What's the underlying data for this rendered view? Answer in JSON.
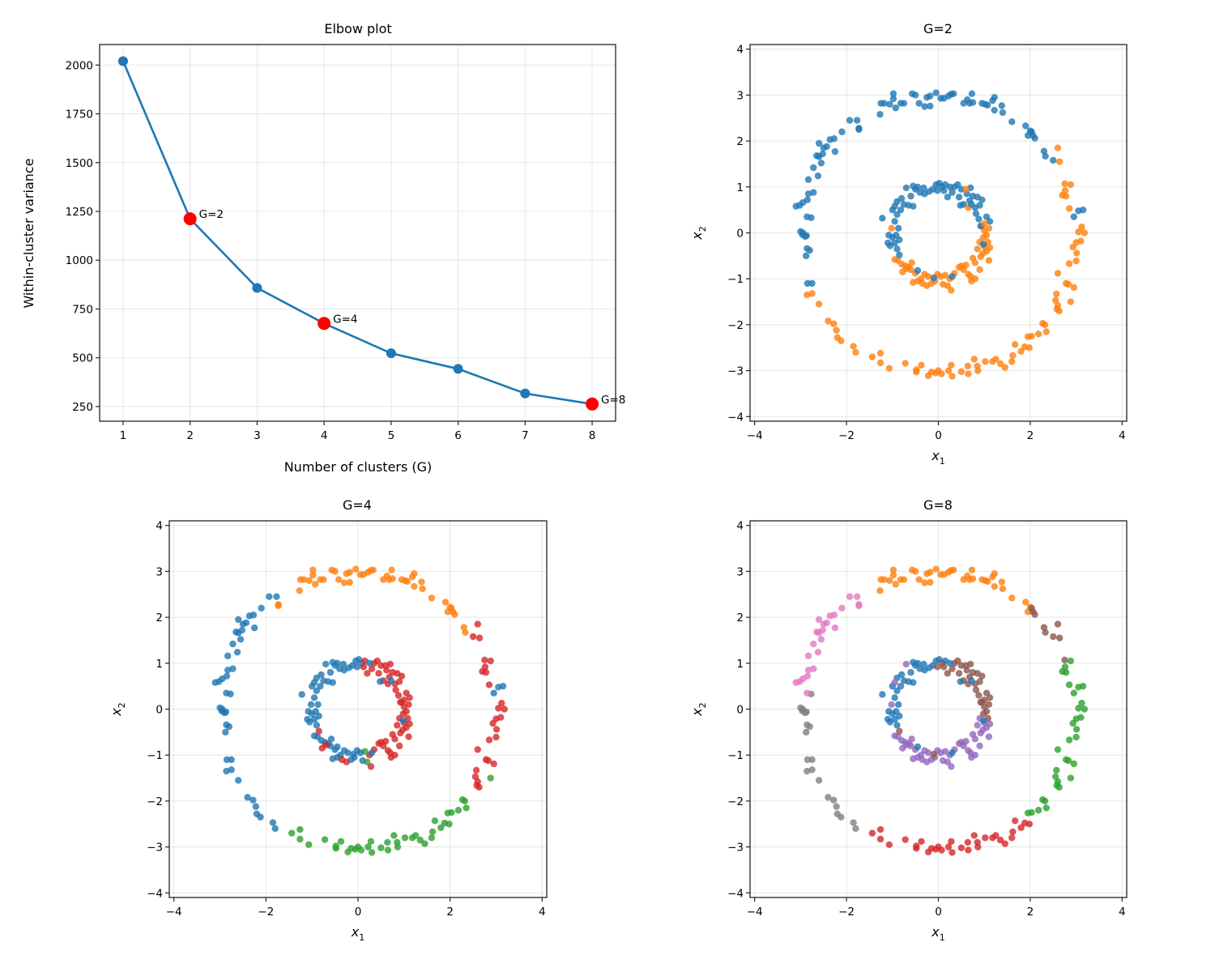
{
  "chart_data": [
    {
      "id": "elbow",
      "type": "line",
      "title": "Elbow plot",
      "xlabel": "Number of clusters (G)",
      "ylabel": "Within-cluster variance",
      "x": [
        1,
        2,
        3,
        4,
        5,
        6,
        7,
        8
      ],
      "values": [
        2020,
        1212,
        858,
        676,
        523,
        443,
        317,
        263
      ],
      "xlim": [
        0.65,
        8.35
      ],
      "ylim": [
        175,
        2105
      ],
      "xticks": [
        "1",
        "2",
        "3",
        "4",
        "5",
        "6",
        "7",
        "8"
      ],
      "yticks": [
        250,
        500,
        750,
        1000,
        1250,
        1500,
        1750,
        2000
      ],
      "grid": true,
      "line_color": "#1f77b4",
      "highlight_color": "#ff0000",
      "highlights": [
        {
          "x": 2,
          "label": "G=2"
        },
        {
          "x": 4,
          "label": "G=4"
        },
        {
          "x": 8,
          "label": "G=8"
        }
      ]
    },
    {
      "id": "g2",
      "type": "scatter",
      "title": "G=2",
      "xlabel": "x",
      "xlabel_sub": "1",
      "ylabel": "x",
      "ylabel_sub": "2",
      "xlim": [
        -4.1,
        4.1
      ],
      "ylim": [
        -4.1,
        4.1
      ],
      "ticks": [
        "−4",
        "−2",
        "0",
        "2",
        "4"
      ],
      "tick_values": [
        -4,
        -2,
        0,
        2,
        4
      ],
      "grid": true,
      "G": 2
    },
    {
      "id": "g4",
      "type": "scatter",
      "title": "G=4",
      "xlabel": "x",
      "xlabel_sub": "1",
      "ylabel": "x",
      "ylabel_sub": "2",
      "xlim": [
        -4.1,
        4.1
      ],
      "ylim": [
        -4.1,
        4.1
      ],
      "ticks": [
        "−4",
        "−2",
        "0",
        "2",
        "4"
      ],
      "tick_values": [
        -4,
        -2,
        0,
        2,
        4
      ],
      "grid": true,
      "G": 4
    },
    {
      "id": "g8",
      "type": "scatter",
      "title": "G=8",
      "xlabel": "x",
      "xlabel_sub": "1",
      "ylabel": "x",
      "ylabel_sub": "2",
      "xlim": [
        -4.1,
        4.1
      ],
      "ylim": [
        -4.1,
        4.1
      ],
      "ticks": [
        "−4",
        "−2",
        "0",
        "2",
        "4"
      ],
      "tick_values": [
        -4,
        -2,
        0,
        2,
        4
      ],
      "grid": true,
      "G": 8
    }
  ],
  "scatter_yticks": [
    "4",
    "3",
    "2",
    "1",
    "0",
    "−1",
    "−2",
    "−3",
    "−4"
  ],
  "scatter_ytick_values": [
    4,
    3,
    2,
    1,
    0,
    -1,
    -2,
    -3,
    -4
  ],
  "palette": {
    "blue": "#1f77b4",
    "orange": "#ff7f0e",
    "green": "#2ca02c",
    "red": "#d62728",
    "purple": "#9467bd",
    "brown": "#8c564b",
    "pink": "#e377c2",
    "gray": "#7f7f7f"
  },
  "points": {
    "outer": [
      [
        3.05,
        0.02
      ],
      [
        3.12,
        0.13
      ],
      [
        3.18,
        0.0
      ],
      [
        3.1,
        -0.18
      ],
      [
        3.0,
        -0.21
      ],
      [
        2.93,
        -0.31
      ],
      [
        3.01,
        -0.44
      ],
      [
        2.85,
        -0.67
      ],
      [
        3.0,
        -0.61
      ],
      [
        2.6,
        -0.88
      ],
      [
        2.78,
        -1.1
      ],
      [
        2.83,
        -1.12
      ],
      [
        2.95,
        -1.19
      ],
      [
        2.57,
        -1.33
      ],
      [
        2.55,
        -1.47
      ],
      [
        2.6,
        -1.58
      ],
      [
        2.63,
        -1.7
      ],
      [
        2.58,
        -1.66
      ],
      [
        2.88,
        -1.5
      ],
      [
        2.32,
        -2.0
      ],
      [
        2.27,
        -1.97
      ],
      [
        2.35,
        -2.15
      ],
      [
        2.18,
        -2.2
      ],
      [
        2.03,
        -2.25
      ],
      [
        1.95,
        -2.26
      ],
      [
        1.88,
        -2.48
      ],
      [
        1.98,
        -2.5
      ],
      [
        1.8,
        -2.58
      ],
      [
        1.67,
        -2.43
      ],
      [
        1.62,
        -2.67
      ],
      [
        1.6,
        -2.8
      ],
      [
        1.45,
        -2.93
      ],
      [
        1.35,
        -2.85
      ],
      [
        1.25,
        -2.75
      ],
      [
        1.18,
        -2.8
      ],
      [
        1.02,
        -2.8
      ],
      [
        0.78,
        -2.75
      ],
      [
        0.85,
        -2.9
      ],
      [
        0.86,
        -3.0
      ],
      [
        0.64,
        -2.9
      ],
      [
        0.65,
        -3.07
      ],
      [
        0.5,
        -3.02
      ],
      [
        0.3,
        -3.12
      ],
      [
        0.28,
        -2.88
      ],
      [
        0.22,
        -3.0
      ],
      [
        0.07,
        -3.07
      ],
      [
        0.0,
        -3.0
      ],
      [
        -0.06,
        -3.05
      ],
      [
        -0.15,
        -3.03
      ],
      [
        -0.22,
        -3.11
      ],
      [
        -0.37,
        -2.88
      ],
      [
        -0.48,
        -2.98
      ],
      [
        -0.48,
        -3.03
      ],
      [
        -0.72,
        -2.84
      ],
      [
        -1.07,
        -2.95
      ],
      [
        -1.26,
        -2.83
      ],
      [
        -1.26,
        -2.62
      ],
      [
        -1.44,
        -2.7
      ],
      [
        -1.8,
        -2.6
      ],
      [
        -1.85,
        -2.47
      ],
      [
        -2.12,
        -2.35
      ],
      [
        -2.2,
        -2.28
      ],
      [
        -2.22,
        -2.12
      ],
      [
        -2.28,
        -1.98
      ],
      [
        -2.4,
        -1.92
      ],
      [
        -2.6,
        -1.55
      ],
      [
        -2.75,
        -1.32
      ],
      [
        -2.86,
        -1.35
      ],
      [
        -2.75,
        -1.1
      ],
      [
        -2.85,
        -1.1
      ],
      [
        -2.88,
        -0.5
      ],
      [
        -2.8,
        -0.38
      ],
      [
        -2.86,
        -0.34
      ],
      [
        -2.9,
        -0.08
      ],
      [
        -2.96,
        -0.04
      ],
      [
        -3.0,
        0.03
      ],
      [
        -2.95,
        0.0
      ],
      [
        -2.87,
        -0.06
      ],
      [
        -2.77,
        0.33
      ],
      [
        -2.86,
        0.35
      ],
      [
        -3.1,
        0.58
      ],
      [
        -3.02,
        0.6
      ],
      [
        -2.95,
        0.66
      ],
      [
        -2.85,
        0.72
      ],
      [
        -2.83,
        0.85
      ],
      [
        -2.72,
        0.88
      ],
      [
        -2.83,
        1.16
      ],
      [
        -2.62,
        1.24
      ],
      [
        -2.72,
        1.42
      ],
      [
        -2.55,
        1.52
      ],
      [
        -2.6,
        1.66
      ],
      [
        -2.65,
        1.68
      ],
      [
        -2.52,
        1.72
      ],
      [
        -2.5,
        1.85
      ],
      [
        -2.43,
        1.88
      ],
      [
        -2.6,
        1.95
      ],
      [
        -2.36,
        2.03
      ],
      [
        -2.27,
        2.05
      ],
      [
        -2.25,
        1.77
      ],
      [
        -2.1,
        2.2
      ],
      [
        -1.93,
        2.45
      ],
      [
        -1.77,
        2.45
      ],
      [
        -1.73,
        2.28
      ],
      [
        -1.73,
        2.25
      ],
      [
        -1.27,
        2.58
      ],
      [
        -1.25,
        2.82
      ],
      [
        -1.18,
        2.82
      ],
      [
        -1.06,
        2.8
      ],
      [
        -0.98,
        2.92
      ],
      [
        -0.98,
        3.03
      ],
      [
        -0.93,
        2.72
      ],
      [
        -0.82,
        2.82
      ],
      [
        -0.75,
        2.82
      ],
      [
        -0.57,
        3.03
      ],
      [
        -0.5,
        3.0
      ],
      [
        -0.42,
        2.82
      ],
      [
        -0.3,
        2.75
      ],
      [
        -0.25,
        2.95
      ],
      [
        -0.18,
        2.98
      ],
      [
        -0.18,
        2.76
      ],
      [
        -0.05,
        3.05
      ],
      [
        0.05,
        2.93
      ],
      [
        0.12,
        2.93
      ],
      [
        0.22,
        2.98
      ],
      [
        0.28,
        3.02
      ],
      [
        0.33,
        3.03
      ],
      [
        0.55,
        2.82
      ],
      [
        0.63,
        2.9
      ],
      [
        0.68,
        2.82
      ],
      [
        0.73,
        3.03
      ],
      [
        0.75,
        2.84
      ],
      [
        0.95,
        2.82
      ],
      [
        1.02,
        2.8
      ],
      [
        1.07,
        2.78
      ],
      [
        1.18,
        2.88
      ],
      [
        1.22,
        2.95
      ],
      [
        1.22,
        2.67
      ],
      [
        1.38,
        2.77
      ],
      [
        1.4,
        2.62
      ],
      [
        1.6,
        2.42
      ],
      [
        1.9,
        2.33
      ],
      [
        1.95,
        2.12
      ],
      [
        2.0,
        2.22
      ],
      [
        2.06,
        2.12
      ],
      [
        2.1,
        2.06
      ],
      [
        2.03,
        2.2
      ],
      [
        2.3,
        1.78
      ],
      [
        2.33,
        1.67
      ],
      [
        2.5,
        1.58
      ],
      [
        2.6,
        1.85
      ],
      [
        2.64,
        1.55
      ],
      [
        2.75,
        1.07
      ],
      [
        2.88,
        1.05
      ],
      [
        2.7,
        0.82
      ],
      [
        2.78,
        0.8
      ],
      [
        2.76,
        0.92
      ],
      [
        2.85,
        0.53
      ],
      [
        2.95,
        0.35
      ],
      [
        3.05,
        0.48
      ],
      [
        3.15,
        0.5
      ]
    ],
    "inner": [
      [
        1.0,
        0.05
      ],
      [
        1.05,
        -0.05
      ],
      [
        1.1,
        0.1
      ],
      [
        0.95,
        0.15
      ],
      [
        1.08,
        -0.2
      ],
      [
        1.12,
        -0.32
      ],
      [
        1.0,
        -0.3
      ],
      [
        0.9,
        -0.2
      ],
      [
        0.85,
        -0.35
      ],
      [
        0.97,
        -0.45
      ],
      [
        1.1,
        -0.6
      ],
      [
        0.92,
        -0.52
      ],
      [
        0.75,
        -0.55
      ],
      [
        0.8,
        -0.65
      ],
      [
        0.6,
        -0.7
      ],
      [
        0.55,
        -0.8
      ],
      [
        0.65,
        -0.9
      ],
      [
        0.72,
        -1.05
      ],
      [
        0.7,
        -0.95
      ],
      [
        0.45,
        -0.75
      ],
      [
        0.35,
        -0.88
      ],
      [
        0.25,
        -1.0
      ],
      [
        0.28,
        -1.25
      ],
      [
        0.15,
        -0.92
      ],
      [
        0.2,
        -1.15
      ],
      [
        0.1,
        -1.12
      ],
      [
        0.05,
        -0.95
      ],
      [
        -0.02,
        -0.9
      ],
      [
        -0.08,
        -1.05
      ],
      [
        -0.15,
        -1.1
      ],
      [
        -0.22,
        -0.95
      ],
      [
        -0.3,
        -0.9
      ],
      [
        -0.38,
        -1.0
      ],
      [
        -0.45,
        -1.05
      ],
      [
        -0.5,
        -0.88
      ],
      [
        -0.55,
        -1.08
      ],
      [
        -0.6,
        -0.8
      ],
      [
        -0.65,
        -0.75
      ],
      [
        -0.72,
        -0.72
      ],
      [
        -0.8,
        -0.68
      ],
      [
        -0.88,
        -0.6
      ],
      [
        -0.95,
        -0.58
      ],
      [
        -0.58,
        -0.65
      ],
      [
        -0.45,
        -0.82
      ],
      [
        -0.9,
        -0.35
      ],
      [
        -0.95,
        -0.22
      ],
      [
        -1.0,
        -0.1
      ],
      [
        -0.92,
        -0.05
      ],
      [
        -1.08,
        -0.05
      ],
      [
        -1.1,
        -0.22
      ],
      [
        -1.05,
        -0.28
      ],
      [
        -0.85,
        -0.15
      ],
      [
        -0.87,
        0.1
      ],
      [
        -0.95,
        0.25
      ],
      [
        -0.9,
        0.4
      ],
      [
        -1.0,
        0.5
      ],
      [
        -0.82,
        0.5
      ],
      [
        -0.75,
        0.62
      ],
      [
        -0.9,
        0.68
      ],
      [
        -1.22,
        0.32
      ],
      [
        -0.8,
        0.75
      ],
      [
        -0.65,
        0.6
      ],
      [
        -0.55,
        0.58
      ],
      [
        -0.6,
        0.8
      ],
      [
        -0.5,
        0.95
      ],
      [
        -0.55,
        1.02
      ],
      [
        -0.4,
        0.88
      ],
      [
        -0.3,
        0.85
      ],
      [
        -0.32,
        0.98
      ],
      [
        -0.2,
        0.9
      ],
      [
        -0.12,
        0.95
      ],
      [
        -0.05,
        1.05
      ],
      [
        0.02,
        1.08
      ],
      [
        0.08,
        1.0
      ],
      [
        -0.02,
        0.92
      ],
      [
        0.15,
        1.05
      ],
      [
        0.12,
        0.92
      ],
      [
        0.2,
        0.78
      ],
      [
        0.3,
        0.88
      ],
      [
        0.35,
        1.0
      ],
      [
        0.42,
        1.05
      ],
      [
        0.5,
        0.95
      ],
      [
        0.45,
        0.78
      ],
      [
        0.55,
        0.62
      ],
      [
        0.62,
        0.85
      ],
      [
        0.7,
        0.98
      ],
      [
        0.75,
        0.8
      ],
      [
        0.68,
        0.7
      ],
      [
        0.85,
        0.78
      ],
      [
        0.9,
        0.6
      ],
      [
        0.8,
        0.55
      ],
      [
        0.95,
        0.72
      ],
      [
        0.82,
        0.42
      ],
      [
        0.88,
        0.3
      ],
      [
        1.05,
        0.35
      ],
      [
        1.12,
        0.25
      ],
      [
        0.92,
        0.15
      ],
      [
        1.0,
        0.2
      ],
      [
        0.6,
        0.95
      ],
      [
        0.65,
        0.55
      ],
      [
        0.98,
        -0.1
      ],
      [
        1.05,
        -0.4
      ],
      [
        0.9,
        -0.8
      ],
      [
        0.8,
        -1.0
      ],
      [
        0.5,
        -0.72
      ],
      [
        -0.25,
        -1.15
      ],
      [
        -0.35,
        -1.1
      ],
      [
        -0.7,
        -0.78
      ],
      [
        -0.78,
        -0.85
      ],
      [
        -1.02,
        0.1
      ],
      [
        -0.95,
        0.58
      ],
      [
        -0.7,
        0.98
      ],
      [
        -0.45,
        1.0
      ],
      [
        0.25,
        1.0
      ],
      [
        0.48,
        0.6
      ],
      [
        0.72,
        0.62
      ],
      [
        0.98,
        -0.25
      ],
      [
        0.3,
        -0.95
      ],
      [
        -0.1,
        -0.98
      ],
      [
        -0.85,
        -0.48
      ]
    ],
    "labels": {
      "g2_outer": "1111111111111111111111111111111111111111111111111111111111111111111100000000000000000000000000000000000000000000000000000000000000000000000000000000011111111",
      "g4_outer": "3333333333333333332222222222222222222222222222222222222222000000000000000000000000000000000000000000001111111111111111111111111111111111111111111111333333333",
      "g8_outer": "2222222222222222222222222333333333333333333333333333333333777777777777777777777666666666666666666666666611111111111111111111111111111111111111155555555522222222",
      "g2_inner": "111111111111111111111111111111111111111111100000000000000000000000000000000000000000000000000000011111111111110000000000000001111",
      "g4_inner": "3333333333333333333333322000000000000000000000000000000000000000000000000003333333333333333333333333333333333000000000033333330",
      "g8_inner": "5555544444444444444444444444444444444444444000000000000000000000000000000550555555555555555555555555544444444444000000555554444"
    }
  }
}
